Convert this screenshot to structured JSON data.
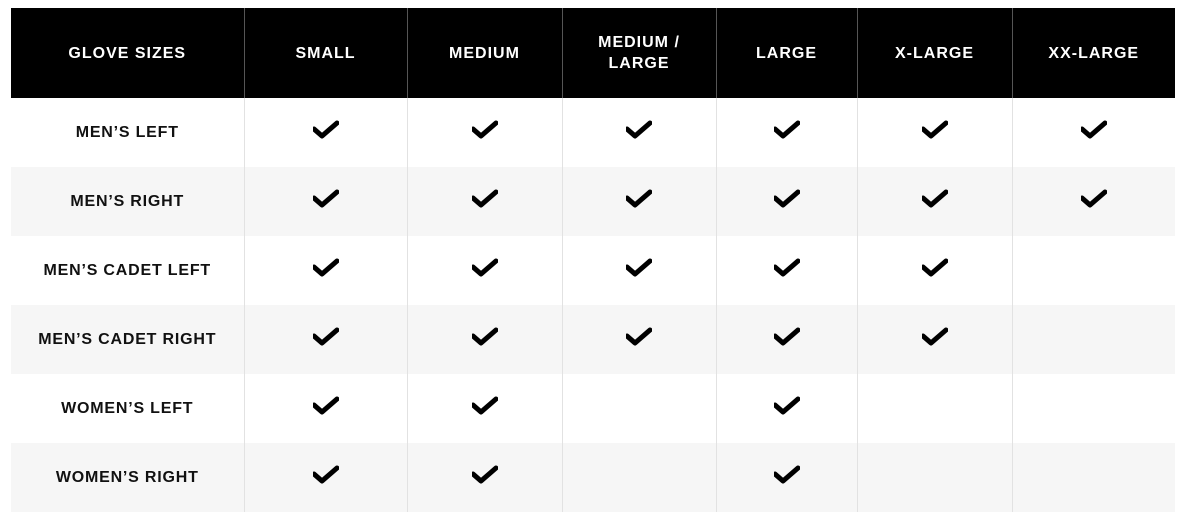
{
  "table": {
    "headers": [
      "GLOVE SIZES",
      "SMALL",
      "MEDIUM",
      "MEDIUM / LARGE",
      "LARGE",
      "X-LARGE",
      "XX-LARGE"
    ],
    "rows": [
      {
        "label": "MEN’S LEFT",
        "available": [
          true,
          true,
          true,
          true,
          true,
          true
        ]
      },
      {
        "label": "MEN’S RIGHT",
        "available": [
          true,
          true,
          true,
          true,
          true,
          true
        ]
      },
      {
        "label": "MEN’S CADET LEFT",
        "available": [
          true,
          true,
          true,
          true,
          true,
          false
        ]
      },
      {
        "label": "MEN’S CADET RIGHT",
        "available": [
          true,
          true,
          true,
          true,
          true,
          false
        ]
      },
      {
        "label": "WOMEN’S LEFT",
        "available": [
          true,
          true,
          false,
          true,
          false,
          false
        ]
      },
      {
        "label": "WOMEN’S RIGHT",
        "available": [
          true,
          true,
          false,
          true,
          false,
          false
        ]
      }
    ],
    "check_icon": "checkmark-icon"
  }
}
